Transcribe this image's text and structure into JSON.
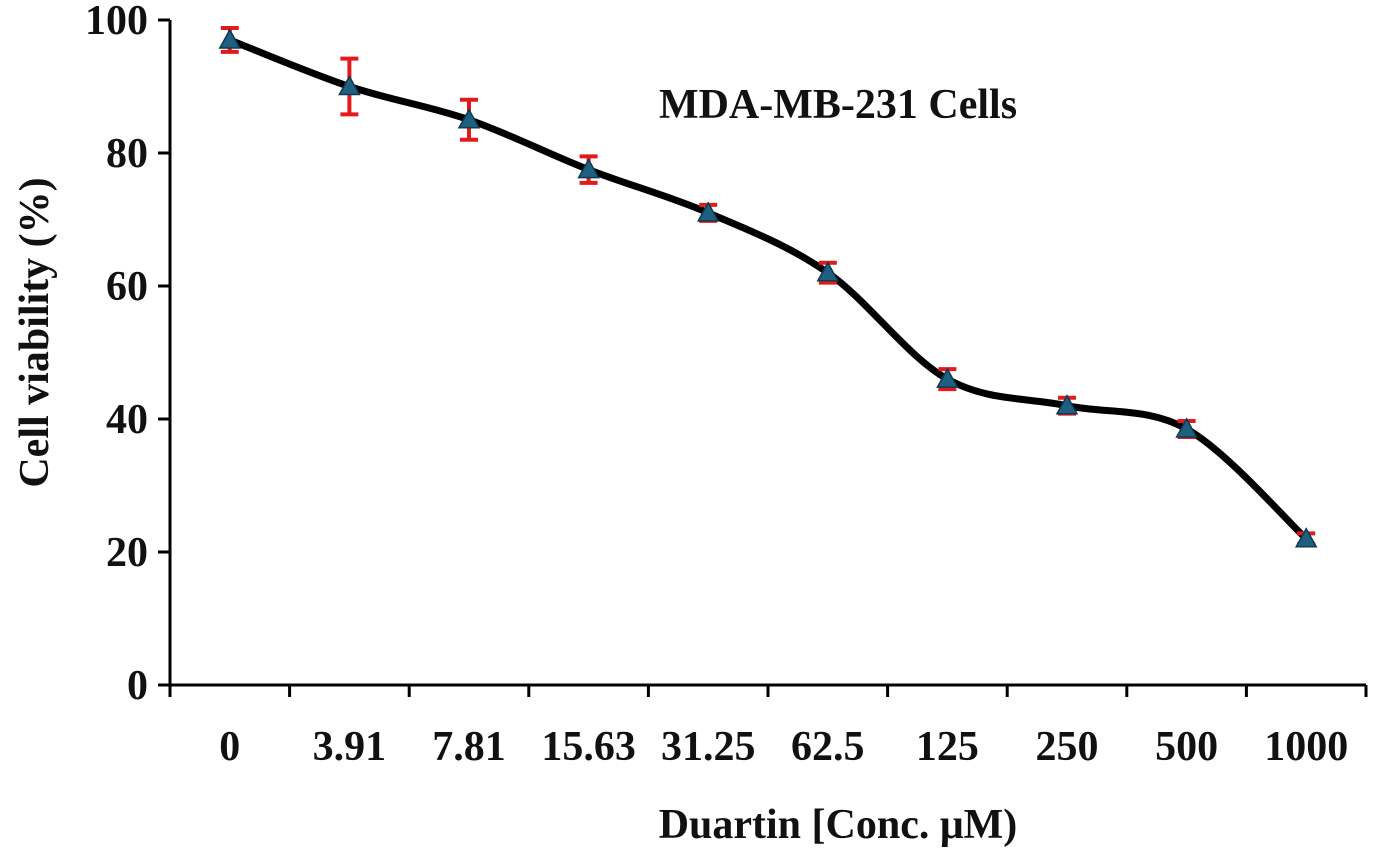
{
  "chart_data": {
    "type": "line",
    "title": "MDA-MB-231 Cells",
    "xlabel": "Duartin [Conc. μM)",
    "ylabel": "Cell viability (%)",
    "categories": [
      "0",
      "3.91",
      "7.81",
      "15.63",
      "31.25",
      "62.5",
      "125",
      "250",
      "500",
      "1000"
    ],
    "series": [
      {
        "values": [
          97,
          90,
          85,
          77.5,
          71,
          62,
          46,
          42,
          38.5,
          22
        ],
        "errors": [
          1.8,
          4.2,
          3,
          2,
          1.2,
          1.5,
          1.5,
          1.2,
          1.2,
          0.8
        ],
        "line_color": "#000000",
        "marker": "triangle",
        "marker_color": "#1f5f7f",
        "error_color": "#e31a1c"
      }
    ],
    "ylim": [
      0,
      100
    ],
    "yticks": [
      0,
      20,
      40,
      60,
      80,
      100
    ],
    "grid": false,
    "legend": "none",
    "smooth": true
  }
}
